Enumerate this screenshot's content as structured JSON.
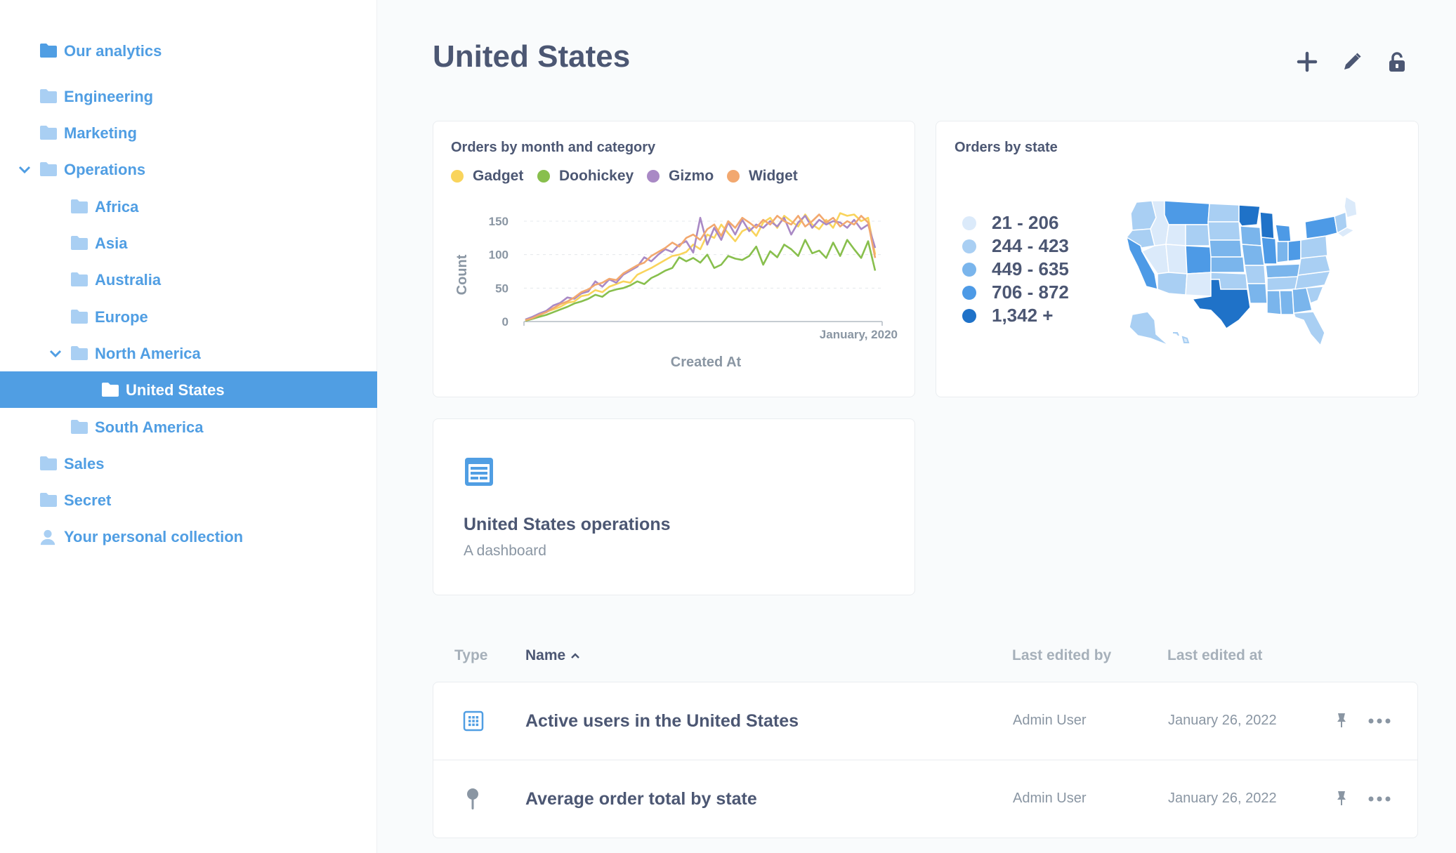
{
  "sidebar": {
    "items": [
      {
        "label": "Our analytics",
        "icon": "folder-icon"
      },
      {
        "label": "Engineering",
        "icon": "folder-icon"
      },
      {
        "label": "Marketing",
        "icon": "folder-icon"
      },
      {
        "label": "Operations",
        "icon": "folder-icon",
        "expanded": true
      },
      {
        "label": "Africa",
        "icon": "folder-icon"
      },
      {
        "label": "Asia",
        "icon": "folder-icon"
      },
      {
        "label": "Australia",
        "icon": "folder-icon"
      },
      {
        "label": "Europe",
        "icon": "folder-icon"
      },
      {
        "label": "North America",
        "icon": "folder-icon",
        "expanded": true
      },
      {
        "label": "United States",
        "icon": "folder-icon",
        "selected": true
      },
      {
        "label": "South America",
        "icon": "folder-icon"
      },
      {
        "label": "Sales",
        "icon": "folder-icon"
      },
      {
        "label": "Secret",
        "icon": "folder-icon"
      },
      {
        "label": "Your personal collection",
        "icon": "person-icon"
      }
    ]
  },
  "header": {
    "title": "United States",
    "actions": [
      "plus-icon",
      "pencil-icon",
      "lock-icon"
    ]
  },
  "cards": {
    "line_chart": {
      "title": "Orders by month and category",
      "legend": [
        {
          "name": "Gadget",
          "color": "#f9d45c"
        },
        {
          "name": "Doohickey",
          "color": "#88bf4d"
        },
        {
          "name": "Gizmo",
          "color": "#a989c5"
        },
        {
          "name": "Widget",
          "color": "#f2a86f"
        }
      ]
    },
    "map": {
      "title": "Orders by state",
      "legend": [
        {
          "label": "21 - 206",
          "color": "#dbeafa"
        },
        {
          "label": "244 - 423",
          "color": "#a9cff3"
        },
        {
          "label": "449 - 635",
          "color": "#7ab5ec"
        },
        {
          "label": "706 - 872",
          "color": "#4d9ae6"
        },
        {
          "label": "1,342 +",
          "color": "#1f72c8"
        }
      ]
    },
    "dashboard": {
      "name": "United States operations",
      "description": "A dashboard",
      "icon": "dashboard-icon"
    }
  },
  "table": {
    "headers": {
      "type": "Type",
      "name": "Name",
      "last_edited_by": "Last edited by",
      "last_edited_at": "Last edited at"
    },
    "rows": [
      {
        "icon": "table-grid-icon",
        "name": "Active users in the United States",
        "last_edited_by": "Admin User",
        "last_edited_at": "January 26, 2022"
      },
      {
        "icon": "pin-map-icon",
        "name": "Average order total by state",
        "last_edited_by": "Admin User",
        "last_edited_at": "January 26, 2022"
      }
    ]
  },
  "chart_data": {
    "type": "line",
    "title": "Orders by month and category",
    "xlabel": "Created At",
    "ylabel": "Count",
    "x_tick_labels": [
      "January, 2020"
    ],
    "ylim": [
      0,
      150
    ],
    "y_ticks": [
      "0",
      "50",
      "100",
      "150"
    ],
    "grid": true,
    "legend_position": "top-left",
    "x": [
      1,
      2,
      3,
      4,
      5,
      6,
      7,
      8,
      9,
      10,
      11,
      12,
      13,
      14,
      15,
      16,
      17,
      18,
      19,
      20,
      21,
      22,
      23,
      24,
      25,
      26,
      27,
      28,
      29,
      30,
      31,
      32,
      33,
      34,
      35,
      36,
      37,
      38,
      39,
      40,
      41,
      42,
      43,
      44,
      45,
      46,
      47,
      48,
      49,
      50,
      51
    ],
    "series": [
      {
        "name": "Gadget",
        "color": "#f9d45c",
        "values": [
          2,
          6,
          9,
          15,
          18,
          22,
          28,
          30,
          38,
          40,
          47,
          44,
          52,
          56,
          60,
          58,
          70,
          75,
          80,
          86,
          92,
          98,
          100,
          104,
          115,
          108,
          130,
          125,
          145,
          132,
          120,
          135,
          140,
          128,
          148,
          155,
          140,
          158,
          150,
          142,
          160,
          145,
          138,
          152,
          140,
          162,
          158,
          160,
          150,
          155,
          100
        ]
      },
      {
        "name": "Doohickey",
        "color": "#88bf4d",
        "values": [
          1,
          4,
          7,
          10,
          14,
          18,
          22,
          27,
          30,
          34,
          40,
          37,
          45,
          48,
          50,
          54,
          60,
          56,
          65,
          70,
          76,
          80,
          96,
          90,
          95,
          88,
          100,
          80,
          85,
          98,
          94,
          92,
          98,
          112,
          85,
          105,
          96,
          115,
          108,
          98,
          122,
          102,
          106,
          95,
          118,
          98,
          122,
          108,
          95,
          120,
          76
        ]
      },
      {
        "name": "Gizmo",
        "color": "#a989c5",
        "values": [
          3,
          7,
          12,
          16,
          24,
          28,
          36,
          34,
          42,
          45,
          60,
          52,
          63,
          58,
          70,
          76,
          82,
          96,
          90,
          100,
          108,
          104,
          115,
          120,
          103,
          155,
          115,
          140,
          122,
          148,
          130,
          152,
          135,
          145,
          140,
          150,
          142,
          155,
          130,
          148,
          158,
          140,
          152,
          145,
          150,
          148,
          140,
          152,
          138,
          145,
          110
        ]
      },
      {
        "name": "Widget",
        "color": "#f2a86f",
        "values": [
          2,
          5,
          10,
          14,
          20,
          26,
          30,
          36,
          44,
          48,
          55,
          58,
          64,
          62,
          72,
          78,
          84,
          88,
          98,
          104,
          110,
          118,
          112,
          125,
          130,
          122,
          138,
          145,
          128,
          150,
          140,
          155,
          148,
          140,
          152,
          145,
          158,
          150,
          145,
          158,
          142,
          150,
          160,
          148,
          155,
          142,
          150,
          145,
          158,
          148,
          95
        ]
      }
    ]
  }
}
